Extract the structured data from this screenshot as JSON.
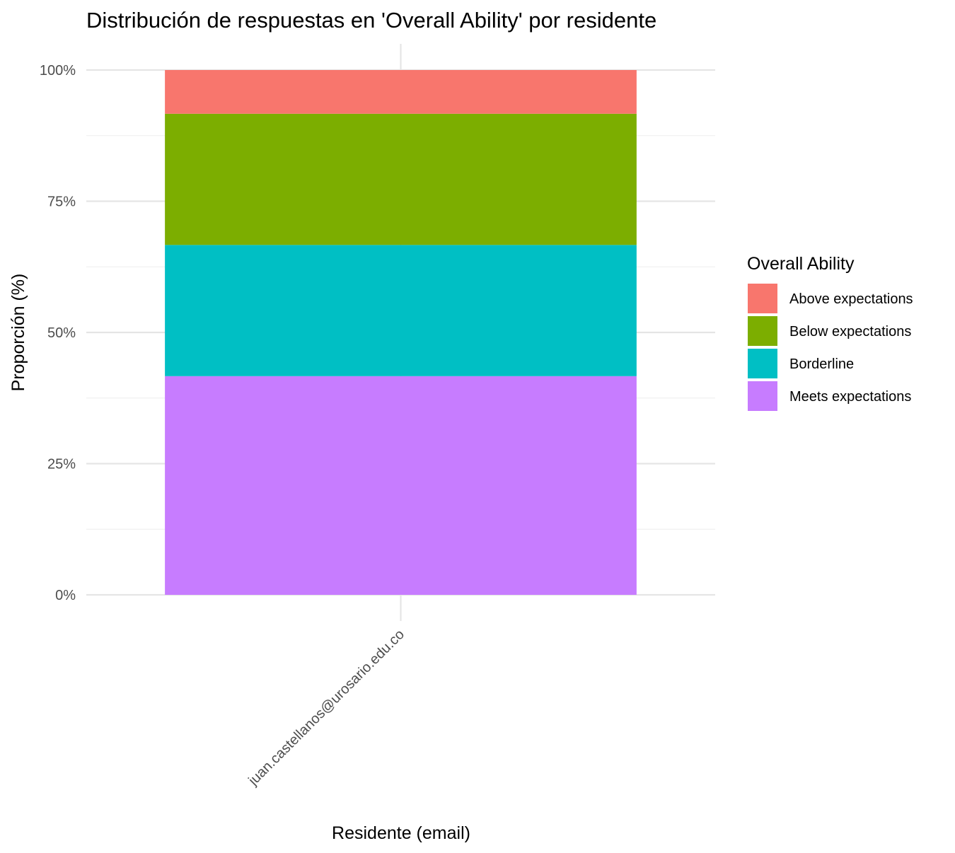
{
  "chart_data": {
    "type": "bar",
    "stacked": true,
    "title": "Distribución de respuestas en 'Overall Ability' por residente",
    "xlabel": "Residente (email)",
    "ylabel": "Proporción (%)",
    "categories": [
      "juan.castellanos@urosario.edu.co"
    ],
    "ylim": [
      0,
      1
    ],
    "yticks": [
      {
        "value": 0,
        "label": "0%"
      },
      {
        "value": 0.25,
        "label": "25%"
      },
      {
        "value": 0.5,
        "label": "50%"
      },
      {
        "value": 0.75,
        "label": "75%"
      },
      {
        "value": 1,
        "label": "100%"
      }
    ],
    "grid": true,
    "legend": {
      "title": "Overall Ability",
      "position": "right"
    },
    "series": [
      {
        "name": "Above expectations",
        "color": "#F8766D",
        "values": [
          0.0833
        ]
      },
      {
        "name": "Below expectations",
        "color": "#7CAE00",
        "values": [
          0.25
        ]
      },
      {
        "name": "Borderline",
        "color": "#00BFC4",
        "values": [
          0.25
        ]
      },
      {
        "name": "Meets expectations",
        "color": "#C77CFF",
        "values": [
          0.4167
        ]
      }
    ],
    "stack_order_bottom_to_top": [
      "Meets expectations",
      "Borderline",
      "Below expectations",
      "Above expectations"
    ]
  }
}
